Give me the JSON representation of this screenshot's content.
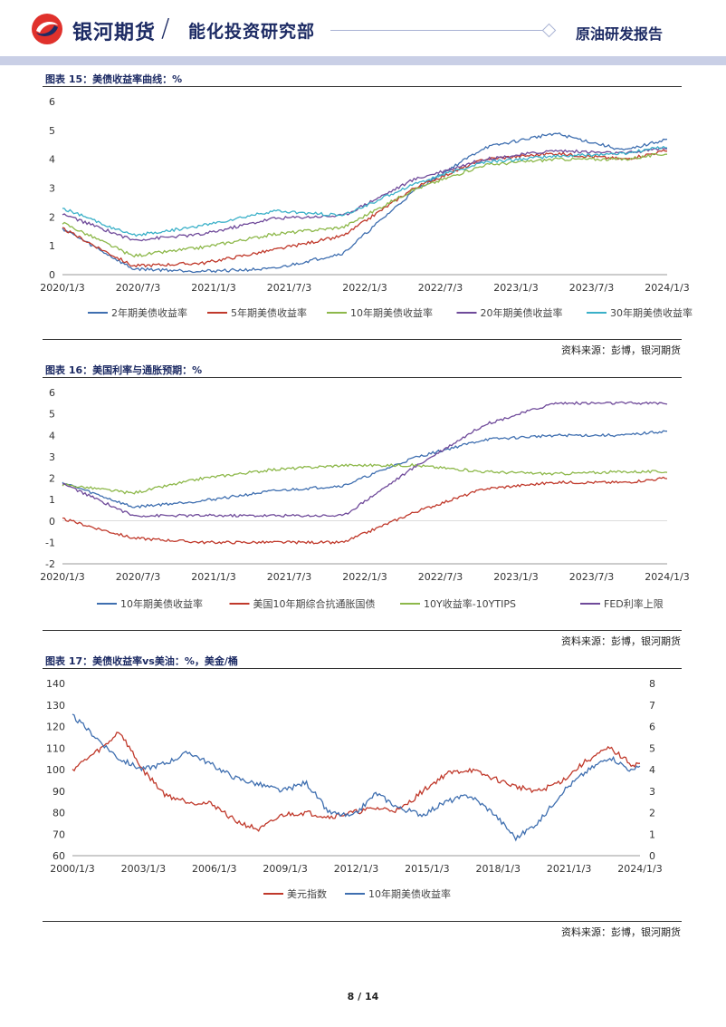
{
  "header": {
    "brand": "银河期货",
    "slash": "/",
    "dept": "能化投资研究部",
    "report_type": "原油研发报告"
  },
  "colors": {
    "navy": "#1d2b64",
    "blue": "#3f6fb0",
    "red": "#c0392b",
    "green": "#8db84a",
    "purple": "#6f4a9a",
    "cyan": "#3ab0c8"
  },
  "source_text": "资料来源：彭博，银河期货",
  "page": "8 / 14",
  "chart_data": [
    {
      "type": "line",
      "title": "图表 15：美债收益率曲线：%",
      "ylim": [
        0,
        6
      ],
      "yticks": [
        "6",
        "5",
        "4",
        "3",
        "2",
        "1",
        "0"
      ],
      "xlabels": [
        "2020/1/3",
        "2020/7/3",
        "2021/1/3",
        "2021/7/3",
        "2022/1/3",
        "2022/7/3",
        "2023/1/3",
        "2023/7/3",
        "2024/1/3"
      ],
      "x": [
        0,
        0.5,
        1,
        1.5,
        2,
        2.5,
        3,
        3.5,
        4,
        4.3
      ],
      "series": [
        {
          "name": "2年期美债收益率",
          "color": "#3f6fb0",
          "values": [
            1.6,
            0.2,
            0.12,
            0.2,
            0.75,
            2.9,
            4.4,
            4.9,
            4.3,
            4.7
          ]
        },
        {
          "name": "5年期美债收益率",
          "color": "#c0392b",
          "values": [
            1.6,
            0.3,
            0.4,
            0.85,
            1.35,
            3.0,
            4.0,
            4.2,
            4.0,
            4.3
          ]
        },
        {
          "name": "10年期美债收益率",
          "color": "#8db84a",
          "values": [
            1.8,
            0.65,
            0.95,
            1.4,
            1.65,
            2.95,
            3.8,
            4.0,
            4.0,
            4.2
          ]
        },
        {
          "name": "20年期美债收益率",
          "color": "#6f4a9a",
          "values": [
            2.1,
            1.2,
            1.4,
            1.95,
            2.05,
            3.3,
            4.0,
            4.3,
            4.2,
            4.4
          ]
        },
        {
          "name": "30年期美债收益率",
          "color": "#3ab0c8",
          "values": [
            2.3,
            1.35,
            1.7,
            2.2,
            2.05,
            3.15,
            3.9,
            4.1,
            4.2,
            4.45
          ]
        }
      ]
    },
    {
      "type": "line",
      "title": "图表 16：美国利率与通胀预期：%",
      "ylim": [
        -2,
        6
      ],
      "yticks": [
        "6",
        "5",
        "4",
        "3",
        "2",
        "1",
        "0",
        "-1",
        "-2"
      ],
      "xlabels": [
        "2020/1/3",
        "2020/7/3",
        "2021/1/3",
        "2021/7/3",
        "2022/1/3",
        "2022/7/3",
        "2023/1/3",
        "2023/7/3",
        "2024/1/3"
      ],
      "x": [
        0,
        0.5,
        1,
        1.5,
        2,
        2.5,
        3,
        3.5,
        4,
        4.3
      ],
      "series": [
        {
          "name": "10年期美债收益率",
          "color": "#3f6fb0",
          "values": [
            1.8,
            0.65,
            0.95,
            1.4,
            1.65,
            2.95,
            3.8,
            4.0,
            4.0,
            4.2
          ]
        },
        {
          "name": "美国10年期综合抗通胀国债",
          "color": "#c0392b",
          "values": [
            0.1,
            -0.8,
            -1.0,
            -1.0,
            -1.0,
            0.4,
            1.5,
            1.8,
            1.8,
            2.0
          ]
        },
        {
          "name": "10Y收益率-10YTIPS",
          "color": "#8db84a",
          "values": [
            1.7,
            1.3,
            2.0,
            2.4,
            2.6,
            2.6,
            2.3,
            2.2,
            2.3,
            2.3
          ]
        },
        {
          "name": "FED利率上限",
          "color": "#6f4a9a",
          "values": [
            1.75,
            0.25,
            0.25,
            0.25,
            0.25,
            2.5,
            4.5,
            5.5,
            5.5,
            5.5
          ]
        }
      ]
    },
    {
      "type": "line",
      "title": "图表 17：美债收益率vs美油：%，美金/桶",
      "ylim": [
        60,
        140
      ],
      "yticks": [
        "140",
        "130",
        "120",
        "110",
        "100",
        "90",
        "80",
        "70",
        "60"
      ],
      "y2lim": [
        0,
        8
      ],
      "y2ticks": [
        "8",
        "7",
        "6",
        "5",
        "4",
        "3",
        "2",
        "1",
        "0"
      ],
      "xlabels": [
        "2000/1/3",
        "2003/1/3",
        "2006/1/3",
        "2009/1/3",
        "2012/1/3",
        "2015/1/3",
        "2018/1/3",
        "2021/1/3",
        "2024/1/3"
      ],
      "x": [
        0,
        1.5,
        2,
        3,
        4,
        5,
        6,
        7,
        8,
        9,
        10,
        11,
        12,
        13,
        14,
        15,
        16,
        17,
        18,
        19,
        20,
        21,
        22,
        23,
        24,
        24.3
      ],
      "series": [
        {
          "name": "美元指数",
          "color": "#c0392b",
          "axis": "left",
          "values": [
            100,
            112,
            118,
            100,
            88,
            85,
            84,
            76,
            72,
            79,
            80,
            78,
            80,
            82,
            81,
            90,
            98,
            100,
            96,
            92,
            90,
            95,
            104,
            110,
            102,
            103
          ]
        },
        {
          "name": "10年期美债收益率",
          "color": "#3f6fb0",
          "axis": "right",
          "values": [
            6.5,
            5.0,
            4.5,
            4.0,
            4.3,
            4.8,
            4.2,
            3.6,
            3.3,
            3.0,
            3.4,
            2.0,
            1.8,
            2.9,
            2.2,
            1.9,
            2.5,
            2.8,
            2.0,
            0.8,
            1.6,
            3.0,
            3.9,
            4.6,
            3.9,
            4.2
          ]
        }
      ]
    }
  ]
}
